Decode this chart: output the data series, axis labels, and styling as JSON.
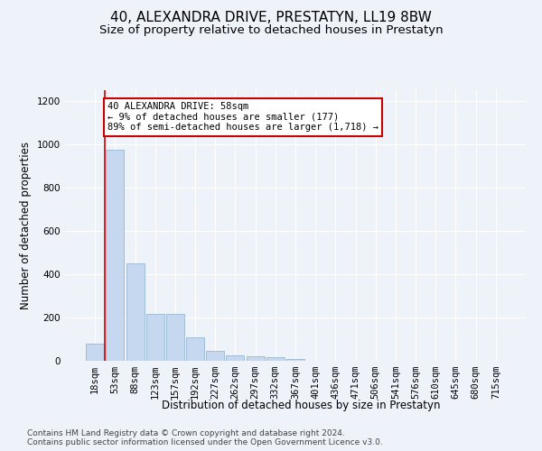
{
  "title": "40, ALEXANDRA DRIVE, PRESTATYN, LL19 8BW",
  "subtitle": "Size of property relative to detached houses in Prestatyn",
  "xlabel": "Distribution of detached houses by size in Prestatyn",
  "ylabel": "Number of detached properties",
  "bin_labels": [
    "18sqm",
    "53sqm",
    "88sqm",
    "123sqm",
    "157sqm",
    "192sqm",
    "227sqm",
    "262sqm",
    "297sqm",
    "332sqm",
    "367sqm",
    "401sqm",
    "436sqm",
    "471sqm",
    "506sqm",
    "541sqm",
    "576sqm",
    "610sqm",
    "645sqm",
    "680sqm",
    "715sqm"
  ],
  "bar_heights": [
    80,
    975,
    450,
    215,
    215,
    110,
    45,
    25,
    20,
    15,
    10,
    0,
    0,
    0,
    0,
    0,
    0,
    0,
    0,
    0,
    0
  ],
  "bar_color": "#c5d8ef",
  "bar_edge_color": "#a0bcd8",
  "vline_color": "#cc0000",
  "annotation_title": "40 ALEXANDRA DRIVE: 58sqm",
  "annotation_line1": "← 9% of detached houses are smaller (177)",
  "annotation_line2": "89% of semi-detached houses are larger (1,718) →",
  "annotation_box_color": "#ffffff",
  "annotation_box_edge": "#cc0000",
  "ylim": [
    0,
    1250
  ],
  "yticks": [
    0,
    200,
    400,
    600,
    800,
    1000,
    1200
  ],
  "footer_line1": "Contains HM Land Registry data © Crown copyright and database right 2024.",
  "footer_line2": "Contains public sector information licensed under the Open Government Licence v3.0.",
  "bg_color": "#eef2f9",
  "plot_bg_color": "#eef2f9",
  "grid_color": "#ffffff",
  "title_fontsize": 11,
  "subtitle_fontsize": 9.5,
  "axis_label_fontsize": 8.5,
  "tick_fontsize": 7.5,
  "footer_fontsize": 6.5,
  "annotation_fontsize": 7.5
}
